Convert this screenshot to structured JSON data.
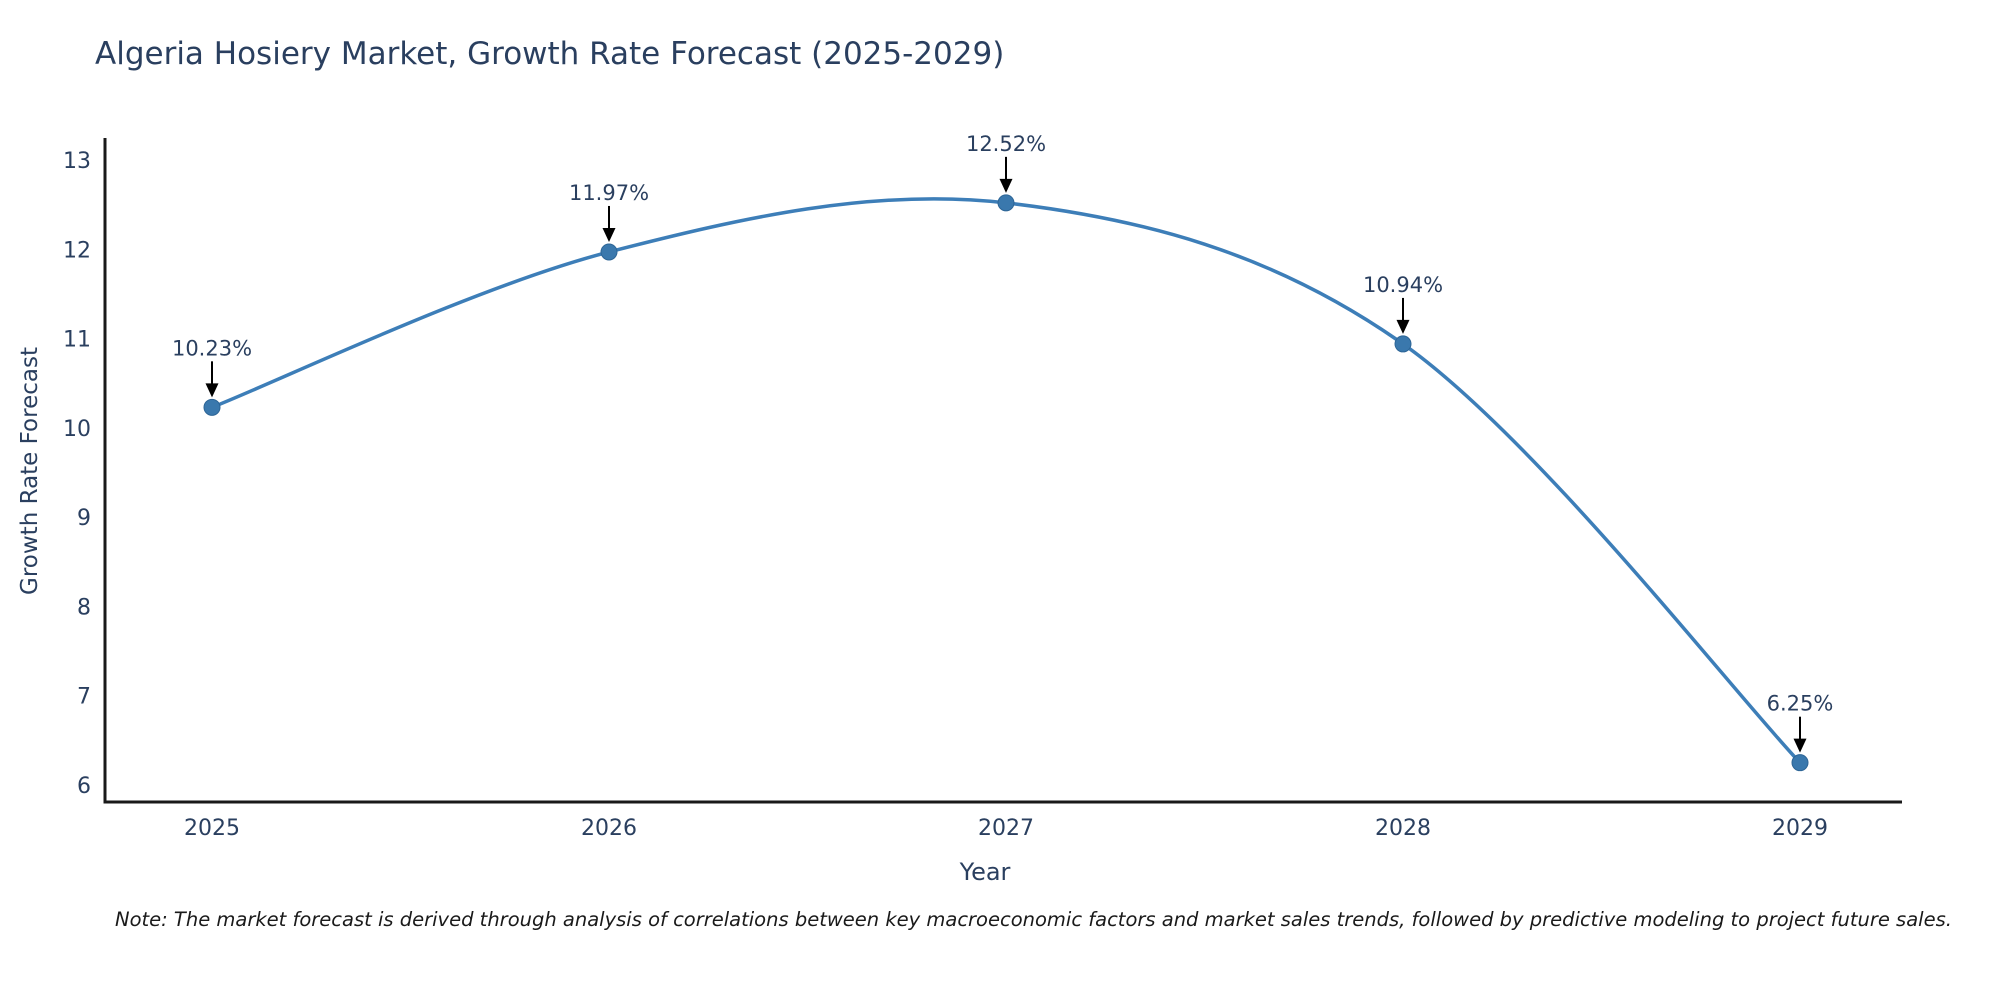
{
  "title": "Algeria Hosiery Market, Growth Rate Forecast (2025-2029)",
  "note": "Note: The market forecast is derived through analysis of correlations between key macroeconomic factors and market sales trends, followed by predictive modeling to project future sales.",
  "chart_data": {
    "type": "line",
    "title": "Algeria Hosiery Market, Growth Rate Forecast (2025-2029)",
    "x": [
      2025,
      2026,
      2027,
      2028,
      2029
    ],
    "values": [
      10.23,
      11.97,
      12.52,
      10.94,
      6.25
    ],
    "data_labels": [
      "10.23%",
      "11.97%",
      "12.52%",
      "10.94%",
      "6.25%"
    ],
    "x_tick_labels": [
      "2025",
      "2026",
      "2027",
      "2028",
      "2029"
    ],
    "y_ticks": [
      6,
      7,
      8,
      9,
      10,
      11,
      12,
      13
    ],
    "xlabel": "Year",
    "ylabel": "Growth Rate Forecast",
    "ylim": [
      6,
      13
    ],
    "line_shape": "spline",
    "grid": false,
    "legend": "none",
    "annotation_style": "value label with black down-arrow pointing at each marker",
    "colors": {
      "line": "#3d7eb8",
      "marker_fill": "#3a78ad",
      "marker_stroke": "#2d6596",
      "axis_line": "#1a1a1a",
      "text": "#2a3f5f",
      "arrow": "#000000",
      "background": "#ffffff"
    }
  }
}
